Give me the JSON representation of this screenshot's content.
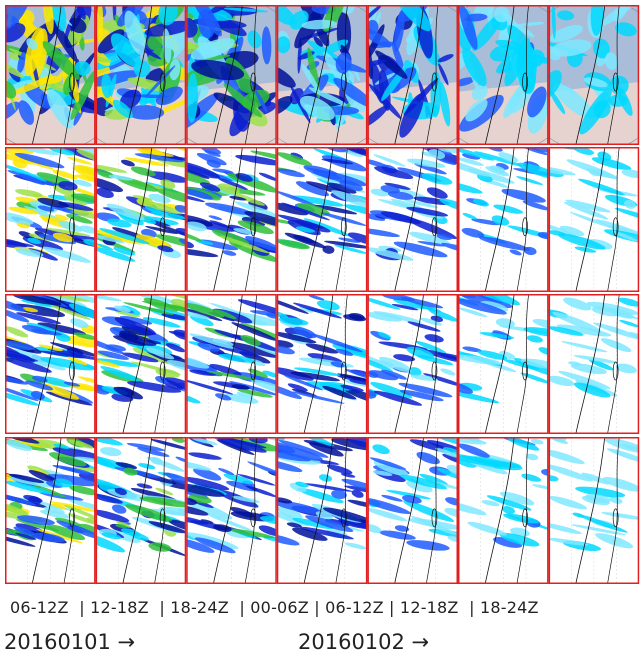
{
  "caption": "06-12Z  | 12-18Z  | 18-24Z  | 00-06Z | 06-12Z | 12-18Z  | 18-24Z",
  "dates": [
    "20160101 →",
    "20160102 →"
  ]
}
